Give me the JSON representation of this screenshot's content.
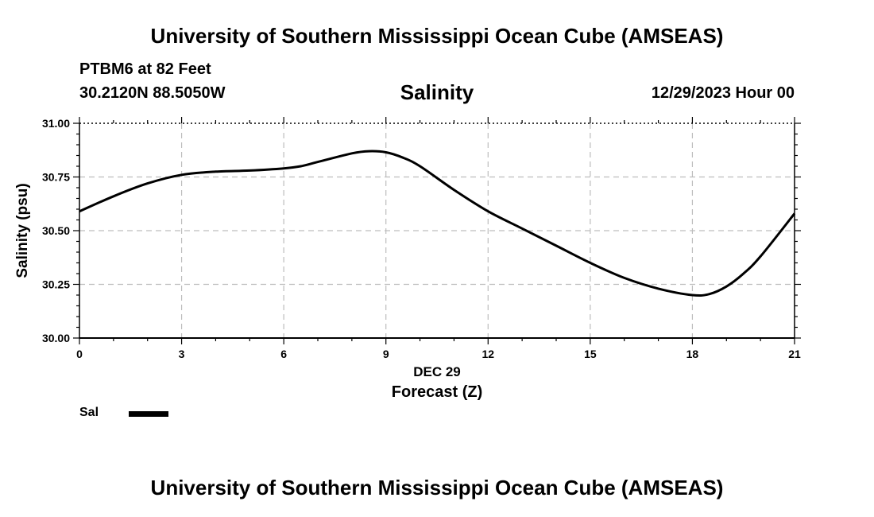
{
  "header": {
    "title": "University of Southern Mississippi Ocean Cube (AMSEAS)",
    "station": "PTBM6 at 82 Feet",
    "coordinates": "30.2120N  88.5050W",
    "datetime": "12/29/2023 Hour 00"
  },
  "footer": {
    "title": "University of Southern Mississippi Ocean Cube (AMSEAS)"
  },
  "legend": {
    "label": "Sal",
    "color": "#000000"
  },
  "chart_data": {
    "type": "line",
    "title": "Salinity",
    "xlabel": "Forecast (Z)",
    "xlabel_date": "DEC 29",
    "ylabel": "Salinity (psu)",
    "xlim": [
      0,
      21
    ],
    "ylim": [
      30.0,
      31.0
    ],
    "x_ticks": [
      0,
      3,
      6,
      9,
      12,
      15,
      18,
      21
    ],
    "x_tick_labels": [
      "0",
      "3",
      "6",
      "9",
      "12",
      "15",
      "18",
      "21"
    ],
    "y_ticks": [
      30.0,
      30.25,
      30.5,
      30.75,
      31.0
    ],
    "y_tick_labels": [
      "30.00",
      "30.25",
      "30.50",
      "30.75",
      "31.00"
    ],
    "grid": true,
    "series": [
      {
        "name": "Sal",
        "color": "#000000",
        "x": [
          0,
          1,
          2,
          3,
          4,
          5,
          6,
          6.5,
          7,
          8,
          8.5,
          9,
          9.5,
          10,
          11,
          12,
          13,
          14,
          15,
          16,
          17,
          18,
          18.5,
          19,
          19.5,
          20,
          21
        ],
        "values": [
          30.59,
          30.66,
          30.72,
          30.76,
          30.775,
          30.78,
          30.79,
          30.8,
          30.82,
          30.86,
          30.87,
          30.865,
          30.84,
          30.8,
          30.69,
          30.59,
          30.51,
          30.43,
          30.35,
          30.28,
          30.23,
          30.2,
          30.205,
          30.24,
          30.3,
          30.38,
          30.58
        ]
      }
    ]
  }
}
